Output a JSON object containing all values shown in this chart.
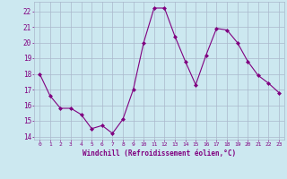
{
  "x": [
    0,
    1,
    2,
    3,
    4,
    5,
    6,
    7,
    8,
    9,
    10,
    11,
    12,
    13,
    14,
    15,
    16,
    17,
    18,
    19,
    20,
    21,
    22,
    23
  ],
  "y": [
    18.0,
    16.6,
    15.8,
    15.8,
    15.4,
    14.5,
    14.7,
    14.2,
    15.1,
    17.0,
    20.0,
    22.2,
    22.2,
    20.4,
    18.8,
    17.3,
    19.2,
    20.9,
    20.8,
    20.0,
    18.8,
    17.9,
    17.4,
    16.8
  ],
  "xlim": [
    -0.5,
    23.5
  ],
  "ylim": [
    13.8,
    22.6
  ],
  "yticks": [
    14,
    15,
    16,
    17,
    18,
    19,
    20,
    21,
    22
  ],
  "xticks": [
    0,
    1,
    2,
    3,
    4,
    5,
    6,
    7,
    8,
    9,
    10,
    11,
    12,
    13,
    14,
    15,
    16,
    17,
    18,
    19,
    20,
    21,
    22,
    23
  ],
  "xlabel": "Windchill (Refroidissement éolien,°C)",
  "line_color": "#800080",
  "marker": "D",
  "marker_size": 2,
  "bg_color": "#cce8f0",
  "grid_color": "#aab8cc",
  "tick_color": "#800080",
  "label_color": "#800080"
}
